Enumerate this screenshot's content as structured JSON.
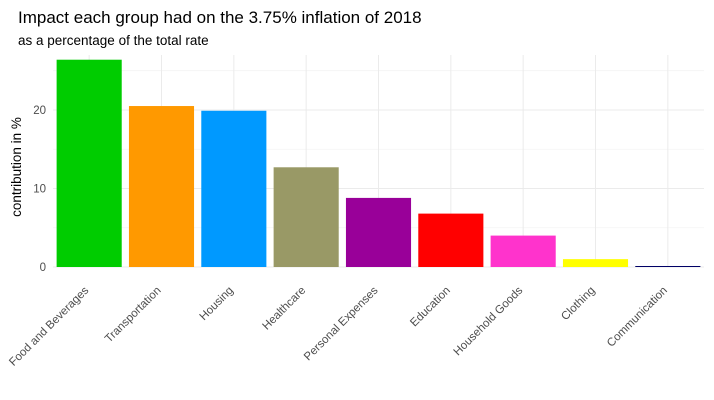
{
  "chart_data": {
    "type": "bar",
    "title": "Impact each group had on the 3.75% inflation of 2018",
    "subtitle": "as a percentage of the total rate",
    "xlabel": "",
    "ylabel": "contribution in %",
    "ylim": [
      0,
      27
    ],
    "yticks": [
      0,
      10,
      20
    ],
    "grid": true,
    "legend": "none",
    "categories": [
      "Food and Beverages",
      "Transportation",
      "Housing",
      "Healthcare",
      "Personal Expenses",
      "Education",
      "Household Goods",
      "Clothing",
      "Communication"
    ],
    "values": [
      26.4,
      20.5,
      19.9,
      12.7,
      8.8,
      6.8,
      4.0,
      1.0,
      0.1
    ],
    "colors": [
      "#00cc00",
      "#ff9900",
      "#0099ff",
      "#999966",
      "#990099",
      "#ff0000",
      "#ff33cc",
      "#ffff00",
      "#000066"
    ]
  }
}
